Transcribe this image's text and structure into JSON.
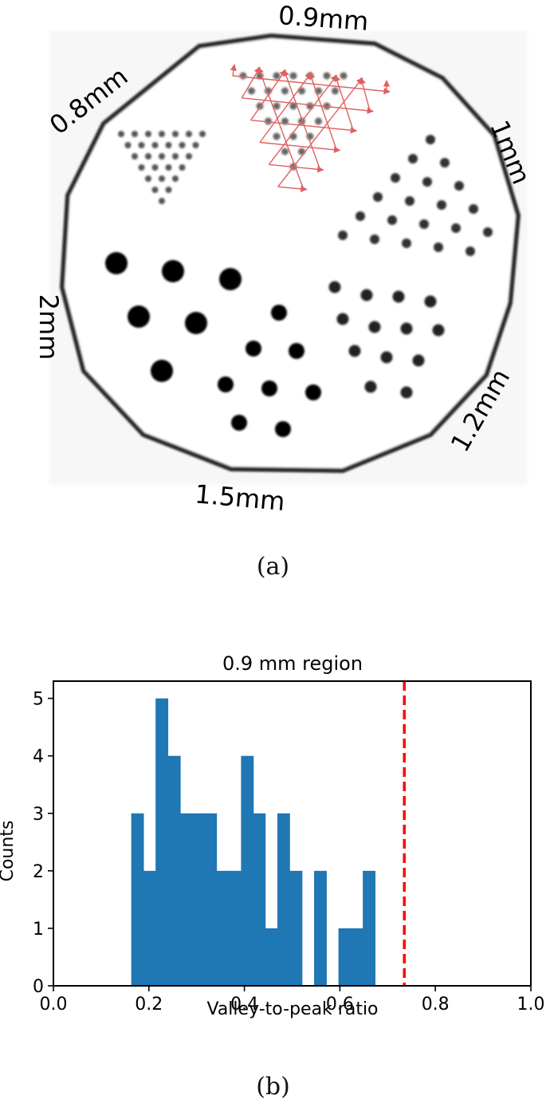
{
  "panel_a": {
    "caption": "(a)",
    "region_labels": {
      "r09": "0.9mm",
      "r08": "0.8mm",
      "r10": "1mm",
      "r20": "2mm",
      "r12": "1.2mm",
      "r15": "1.5mm"
    },
    "colors": {
      "arrows": "#e06060",
      "rods": "#000000",
      "ring": "#222222"
    }
  },
  "panel_b": {
    "caption": "(b)"
  },
  "chart_data": {
    "type": "bar",
    "title": "0.9 mm region",
    "xlabel": "Valley-to-peak ratio",
    "ylabel": "Counts",
    "xlim": [
      0.0,
      1.0
    ],
    "ylim": [
      0,
      5.3
    ],
    "xticks": [
      "0.0",
      "0.2",
      "0.4",
      "0.6",
      "0.8",
      "1.0"
    ],
    "yticks": [
      "0",
      "1",
      "2",
      "3",
      "4",
      "5"
    ],
    "bin_width": 0.0255,
    "bins_start": [
      0.163,
      0.189,
      0.214,
      0.24,
      0.265,
      0.291,
      0.316,
      0.342,
      0.367,
      0.393,
      0.418,
      0.444,
      0.469,
      0.495,
      0.52,
      0.546,
      0.571,
      0.597,
      0.622,
      0.648
    ],
    "counts": [
      3,
      2,
      5,
      4,
      3,
      3,
      3,
      2,
      2,
      4,
      3,
      1,
      3,
      2,
      0,
      2,
      0,
      1,
      1,
      2
    ],
    "threshold": 0.735,
    "colors": {
      "bars": "#1f77b4",
      "threshold_line": "#ff0000"
    },
    "grid": false,
    "legend": false
  }
}
